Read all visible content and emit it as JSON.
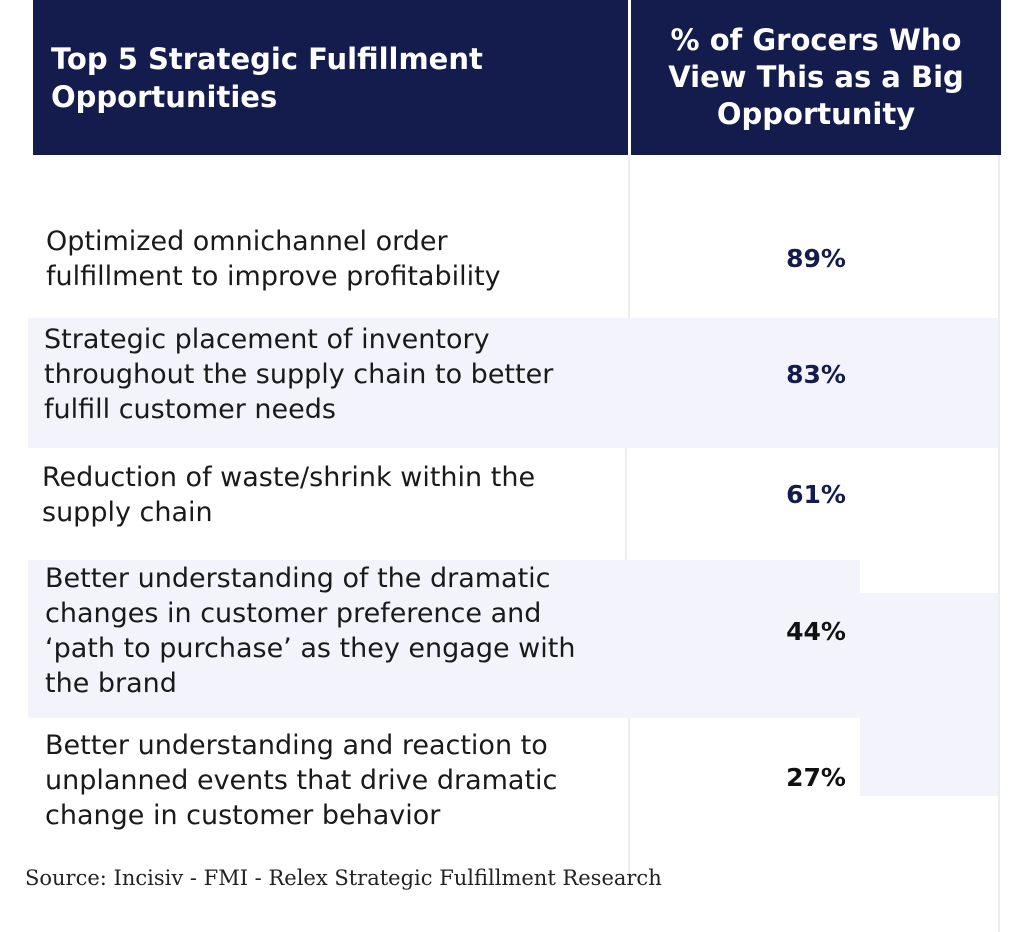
{
  "chart_data": {
    "type": "table",
    "columns": [
      "Top 5 Strategic Fulfillment Opportunities",
      "% of Grocers Who View This as a Big Opportunity"
    ],
    "rows": [
      {
        "label": "Optimized omnichannel order fulfillment to improve profitability",
        "value": 89,
        "display": "89%"
      },
      {
        "label": "Strategic placement of inventory throughout the supply chain to better fulfill customer needs",
        "value": 83,
        "display": "83%"
      },
      {
        "label": "Reduction of waste/shrink within the supply chain",
        "value": 61,
        "display": "61%"
      },
      {
        "label": "Better understanding of the dramatic changes in customer preference and ‘path to purchase’ as they engage with the brand",
        "value": 44,
        "display": "44%"
      },
      {
        "label": "Better understanding and reaction to unplanned events that drive dramatic change in customer behavior",
        "value": 27,
        "display": "27%"
      }
    ],
    "unit": "%"
  },
  "source": "Source: Incisiv - FMI - Relex Strategic Fulfillment Research",
  "colors": {
    "header_bg": "#141b4d",
    "header_text": "#ffffff",
    "row_alt_bg": "#f3f4fb",
    "value_text": "#141b4d"
  }
}
